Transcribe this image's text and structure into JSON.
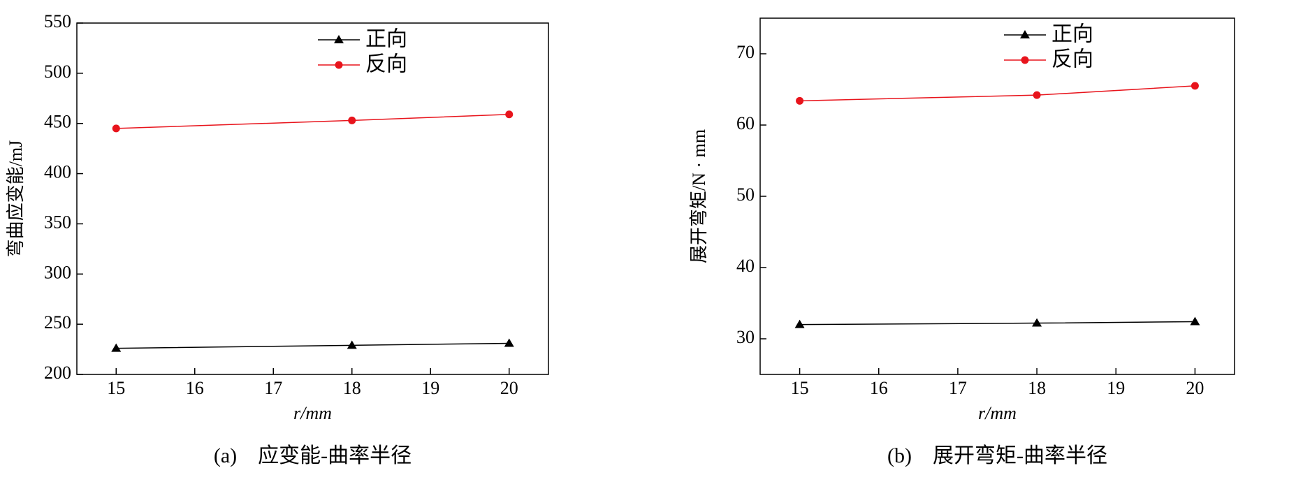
{
  "chart_data": [
    {
      "type": "line",
      "caption": "(a)　应变能-曲率半径",
      "xlabel": "r/mm",
      "ylabel": "弯曲应变能/mJ",
      "x": [
        15,
        18,
        20
      ],
      "xlim": [
        14.5,
        20.5
      ],
      "xticks": [
        15,
        16,
        17,
        18,
        19,
        20
      ],
      "ylim": [
        200,
        550
      ],
      "yticks": [
        200,
        250,
        300,
        350,
        400,
        450,
        500,
        550
      ],
      "legend": "upper right",
      "series": [
        {
          "name": "正向",
          "color": "#000000",
          "marker": "triangle",
          "values": [
            226,
            229,
            231
          ]
        },
        {
          "name": "反向",
          "color": "#e8141c",
          "marker": "circle",
          "values": [
            445,
            453,
            459
          ]
        }
      ]
    },
    {
      "type": "line",
      "caption": "(b)　展开弯矩-曲率半径",
      "xlabel": "r/mm",
      "ylabel": "展开弯矩/N · mm",
      "x": [
        15,
        18,
        20
      ],
      "xlim": [
        14.5,
        20.5
      ],
      "xticks": [
        15,
        16,
        17,
        18,
        19,
        20
      ],
      "ylim": [
        25,
        75
      ],
      "yticks": [
        30,
        40,
        50,
        60,
        70
      ],
      "legend": "upper right",
      "series": [
        {
          "name": "正向",
          "color": "#000000",
          "marker": "triangle",
          "values": [
            32.0,
            32.2,
            32.4
          ]
        },
        {
          "name": "反向",
          "color": "#e8141c",
          "marker": "circle",
          "values": [
            63.4,
            64.2,
            65.5
          ]
        }
      ]
    }
  ]
}
